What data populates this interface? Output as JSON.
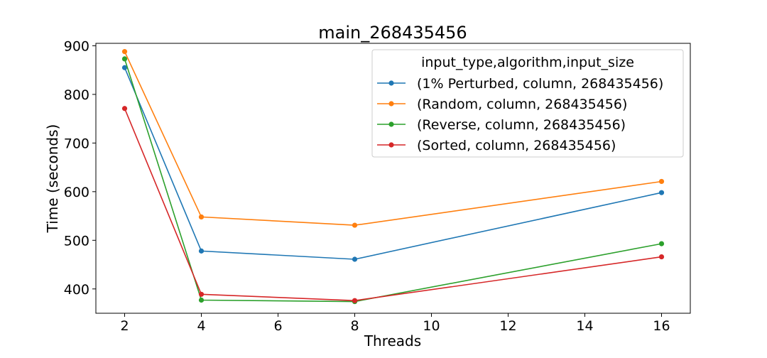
{
  "chart_data": {
    "type": "line",
    "title": "main_268435456",
    "xlabel": "Threads",
    "ylabel": "Time (seconds)",
    "xlim": [
      1.25,
      16.75
    ],
    "ylim": [
      350,
      905
    ],
    "xticks": [
      2,
      4,
      6,
      8,
      10,
      12,
      14,
      16
    ],
    "yticks": [
      400,
      500,
      600,
      700,
      800,
      900
    ],
    "x": [
      2,
      4,
      8,
      16
    ],
    "legend": {
      "title": "input_type,algorithm,input_size",
      "placement": "top-right"
    },
    "series": [
      {
        "name": "(1% Perturbed, column, 268435456)",
        "color": "#1f77b4",
        "values": [
          855,
          478,
          461,
          598
        ]
      },
      {
        "name": "(Random, column, 268435456)",
        "color": "#ff7f0e",
        "values": [
          888,
          548,
          531,
          621
        ]
      },
      {
        "name": "(Reverse, column, 268435456)",
        "color": "#2ca02c",
        "values": [
          873,
          377,
          374,
          493
        ]
      },
      {
        "name": "(Sorted, column, 268435456)",
        "color": "#d62728",
        "values": [
          771,
          389,
          376,
          466
        ]
      }
    ],
    "grid": false
  }
}
